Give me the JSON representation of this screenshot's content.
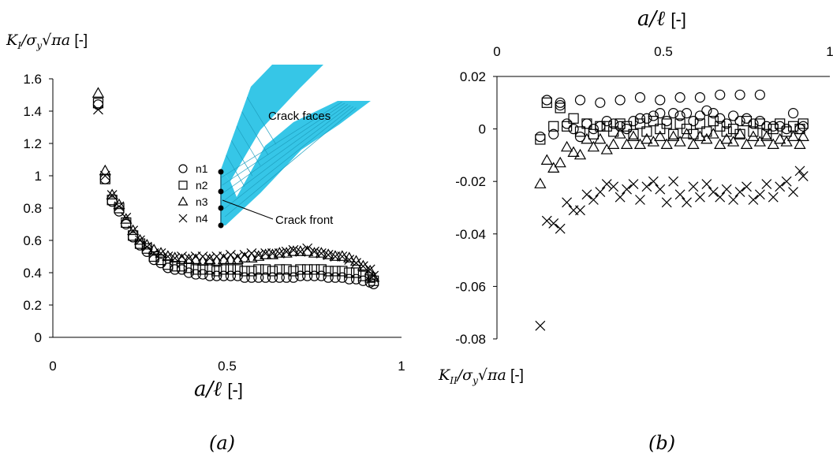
{
  "panels": {
    "a": {
      "ylabel_main": "K",
      "ylabel_sub": "I",
      "ylabel_rest": "/σ",
      "ylabel_sub2": "y",
      "ylabel_sqrt": "√πa",
      "ylabel_unit": "[-]",
      "xlabel_main": "a/ℓ",
      "xlabel_unit": "[-]",
      "caption": "(a)",
      "inset": {
        "faces_label": "Crack faces",
        "front_label": "Crack front",
        "face_color": "#2bc3e6",
        "legend": [
          {
            "marker": "circle",
            "label": "n1"
          },
          {
            "marker": "square",
            "label": "n2"
          },
          {
            "marker": "triangle",
            "label": "n3"
          },
          {
            "marker": "cross",
            "label": "n4"
          }
        ]
      }
    },
    "b": {
      "ylabel_main": "K",
      "ylabel_sub": "II",
      "ylabel_rest": "/σ",
      "ylabel_sub2": "y",
      "ylabel_sqrt": "√πa",
      "ylabel_unit": "[-]",
      "xlabel_main": "a/ℓ",
      "xlabel_unit": "[-]",
      "caption": "(b)"
    }
  },
  "chart_data": [
    {
      "type": "scatter",
      "xlim": [
        0,
        1
      ],
      "ylim": [
        0,
        1.6
      ],
      "xticks": [
        "0",
        "0.5",
        "1"
      ],
      "yticks": [
        "0",
        "0.2",
        "0.4",
        "0.6",
        "0.8",
        "1",
        "1.2",
        "1.4",
        "1.6"
      ],
      "grid": false,
      "legend": "inset",
      "series": [
        {
          "name": "n1",
          "marker": "circle",
          "x": [
            0.13,
            0.15,
            0.17,
            0.19,
            0.21,
            0.23,
            0.25,
            0.27,
            0.29,
            0.31,
            0.33,
            0.35,
            0.37,
            0.39,
            0.41,
            0.43,
            0.45,
            0.47,
            0.49,
            0.51,
            0.53,
            0.55,
            0.57,
            0.59,
            0.61,
            0.63,
            0.65,
            0.67,
            0.69,
            0.71,
            0.73,
            0.75,
            0.77,
            0.79,
            0.81,
            0.83,
            0.85,
            0.87,
            0.89,
            0.91,
            0.92
          ],
          "y": [
            1.44,
            0.98,
            0.84,
            0.78,
            0.7,
            0.62,
            0.57,
            0.53,
            0.48,
            0.46,
            0.43,
            0.42,
            0.42,
            0.4,
            0.39,
            0.39,
            0.38,
            0.38,
            0.38,
            0.38,
            0.38,
            0.37,
            0.37,
            0.37,
            0.37,
            0.37,
            0.37,
            0.37,
            0.37,
            0.38,
            0.38,
            0.38,
            0.38,
            0.37,
            0.37,
            0.37,
            0.36,
            0.36,
            0.35,
            0.34,
            0.33
          ]
        },
        {
          "name": "n2",
          "marker": "square",
          "x": [
            0.13,
            0.15,
            0.17,
            0.19,
            0.21,
            0.23,
            0.25,
            0.27,
            0.29,
            0.31,
            0.33,
            0.35,
            0.37,
            0.39,
            0.41,
            0.43,
            0.45,
            0.47,
            0.49,
            0.51,
            0.53,
            0.55,
            0.57,
            0.59,
            0.61,
            0.63,
            0.65,
            0.67,
            0.69,
            0.71,
            0.73,
            0.75,
            0.77,
            0.79,
            0.81,
            0.83,
            0.85,
            0.87,
            0.89,
            0.91,
            0.92
          ],
          "y": [
            1.45,
            0.98,
            0.85,
            0.8,
            0.71,
            0.63,
            0.58,
            0.55,
            0.5,
            0.48,
            0.45,
            0.44,
            0.44,
            0.43,
            0.42,
            0.42,
            0.42,
            0.41,
            0.42,
            0.42,
            0.42,
            0.41,
            0.41,
            0.42,
            0.42,
            0.41,
            0.42,
            0.42,
            0.41,
            0.42,
            0.42,
            0.42,
            0.42,
            0.41,
            0.41,
            0.41,
            0.4,
            0.4,
            0.38,
            0.37,
            0.35
          ]
        },
        {
          "name": "n3",
          "marker": "triangle",
          "x": [
            0.13,
            0.15,
            0.17,
            0.19,
            0.21,
            0.23,
            0.25,
            0.27,
            0.29,
            0.31,
            0.33,
            0.35,
            0.37,
            0.39,
            0.41,
            0.43,
            0.45,
            0.47,
            0.49,
            0.51,
            0.53,
            0.55,
            0.57,
            0.59,
            0.61,
            0.63,
            0.65,
            0.67,
            0.69,
            0.71,
            0.73,
            0.75,
            0.77,
            0.79,
            0.81,
            0.83,
            0.85,
            0.87,
            0.89,
            0.91,
            0.92
          ],
          "y": [
            1.51,
            1.03,
            0.88,
            0.82,
            0.73,
            0.66,
            0.6,
            0.57,
            0.54,
            0.52,
            0.5,
            0.49,
            0.48,
            0.48,
            0.48,
            0.47,
            0.48,
            0.47,
            0.48,
            0.48,
            0.48,
            0.49,
            0.49,
            0.5,
            0.51,
            0.51,
            0.52,
            0.52,
            0.53,
            0.53,
            0.53,
            0.52,
            0.52,
            0.51,
            0.5,
            0.5,
            0.49,
            0.47,
            0.44,
            0.41,
            0.37
          ]
        },
        {
          "name": "n4",
          "marker": "cross",
          "x": [
            0.13,
            0.15,
            0.17,
            0.19,
            0.21,
            0.23,
            0.25,
            0.27,
            0.29,
            0.31,
            0.33,
            0.35,
            0.37,
            0.39,
            0.41,
            0.43,
            0.45,
            0.47,
            0.49,
            0.51,
            0.53,
            0.55,
            0.57,
            0.59,
            0.61,
            0.63,
            0.65,
            0.67,
            0.69,
            0.71,
            0.73,
            0.75,
            0.77,
            0.79,
            0.81,
            0.83,
            0.85,
            0.87,
            0.89,
            0.91,
            0.92
          ],
          "y": [
            1.41,
            1.0,
            0.88,
            0.81,
            0.74,
            0.66,
            0.6,
            0.56,
            0.52,
            0.52,
            0.5,
            0.49,
            0.5,
            0.49,
            0.5,
            0.5,
            0.49,
            0.5,
            0.5,
            0.51,
            0.5,
            0.51,
            0.52,
            0.51,
            0.52,
            0.52,
            0.52,
            0.53,
            0.54,
            0.53,
            0.55,
            0.53,
            0.52,
            0.51,
            0.5,
            0.5,
            0.48,
            0.46,
            0.44,
            0.42,
            0.38
          ]
        }
      ]
    },
    {
      "type": "scatter",
      "xlim": [
        0,
        1
      ],
      "ylim": [
        -0.08,
        0.02
      ],
      "xticks": [
        "0",
        "0.5",
        "1"
      ],
      "yticks": [
        "-0.08",
        "-0.06",
        "-0.04",
        "-0.02",
        "0",
        "0.02"
      ],
      "grid": false,
      "legend": "none",
      "series": [
        {
          "name": "n1",
          "marker": "circle",
          "x": [
            0.13,
            0.15,
            0.17,
            0.19,
            0.21,
            0.23,
            0.25,
            0.27,
            0.29,
            0.31,
            0.33,
            0.35,
            0.37,
            0.39,
            0.41,
            0.43,
            0.45,
            0.47,
            0.49,
            0.51,
            0.53,
            0.55,
            0.57,
            0.59,
            0.61,
            0.63,
            0.65,
            0.67,
            0.69,
            0.71,
            0.73,
            0.75,
            0.77,
            0.79,
            0.81,
            0.83,
            0.85,
            0.87,
            0.89,
            0.91,
            0.92,
            0.19,
            0.25,
            0.31,
            0.37,
            0.43,
            0.49,
            0.55,
            0.61,
            0.67,
            0.73,
            0.79
          ],
          "y": [
            -0.003,
            0.011,
            -0.002,
            0.009,
            0.002,
            0.0,
            -0.003,
            0.002,
            0.0,
            0.001,
            0.003,
            0.002,
            0.001,
            0.0,
            0.003,
            0.004,
            0.004,
            0.005,
            0.006,
            0.003,
            0.006,
            0.005,
            0.006,
            0.003,
            0.005,
            0.007,
            0.006,
            0.004,
            0.002,
            0.005,
            0.003,
            0.004,
            0.002,
            0.003,
            0.001,
            0.001,
            0.001,
            0.0,
            0.006,
            0.0,
            0.001,
            0.01,
            0.011,
            0.01,
            0.011,
            0.012,
            0.011,
            0.012,
            0.012,
            0.013,
            0.013,
            0.013
          ]
        },
        {
          "name": "n2",
          "marker": "square",
          "x": [
            0.13,
            0.15,
            0.17,
            0.19,
            0.21,
            0.23,
            0.25,
            0.27,
            0.29,
            0.31,
            0.33,
            0.35,
            0.37,
            0.39,
            0.41,
            0.43,
            0.45,
            0.47,
            0.49,
            0.51,
            0.53,
            0.55,
            0.57,
            0.59,
            0.61,
            0.63,
            0.65,
            0.67,
            0.69,
            0.71,
            0.73,
            0.75,
            0.77,
            0.79,
            0.81,
            0.83,
            0.85,
            0.87,
            0.89,
            0.91,
            0.92
          ],
          "y": [
            -0.004,
            0.01,
            0.001,
            0.008,
            0.001,
            0.004,
            -0.001,
            0.002,
            -0.002,
            0.001,
            0.001,
            -0.001,
            0.002,
            0.001,
            -0.002,
            0.002,
            -0.001,
            0.003,
            0.0,
            0.002,
            -0.002,
            0.002,
            0.0,
            -0.002,
            0.002,
            -0.001,
            0.003,
            0.001,
            -0.001,
            0.0,
            -0.002,
            0.003,
            -0.001,
            0.002,
            -0.002,
            0.0,
            0.002,
            -0.001,
            0.001,
            0.0,
            0.002
          ]
        },
        {
          "name": "n3",
          "marker": "triangle",
          "x": [
            0.13,
            0.15,
            0.17,
            0.19,
            0.21,
            0.23,
            0.25,
            0.27,
            0.29,
            0.31,
            0.33,
            0.35,
            0.37,
            0.39,
            0.41,
            0.43,
            0.45,
            0.47,
            0.49,
            0.51,
            0.53,
            0.55,
            0.57,
            0.59,
            0.61,
            0.63,
            0.65,
            0.67,
            0.69,
            0.71,
            0.73,
            0.75,
            0.77,
            0.79,
            0.81,
            0.83,
            0.85,
            0.87,
            0.89,
            0.91,
            0.92
          ],
          "y": [
            -0.021,
            -0.012,
            -0.015,
            -0.013,
            -0.007,
            -0.009,
            -0.01,
            -0.004,
            -0.007,
            -0.004,
            -0.008,
            -0.006,
            -0.002,
            -0.006,
            -0.003,
            -0.006,
            -0.004,
            -0.005,
            -0.003,
            -0.006,
            -0.003,
            -0.005,
            -0.002,
            -0.006,
            -0.003,
            -0.004,
            -0.002,
            -0.006,
            -0.004,
            -0.005,
            -0.002,
            -0.006,
            -0.003,
            -0.005,
            -0.003,
            -0.006,
            -0.004,
            -0.005,
            -0.003,
            -0.006,
            -0.003
          ]
        },
        {
          "name": "n4",
          "marker": "cross",
          "x": [
            0.13,
            0.15,
            0.17,
            0.19,
            0.21,
            0.23,
            0.25,
            0.27,
            0.29,
            0.31,
            0.33,
            0.35,
            0.37,
            0.39,
            0.41,
            0.43,
            0.45,
            0.47,
            0.49,
            0.51,
            0.53,
            0.55,
            0.57,
            0.59,
            0.61,
            0.63,
            0.65,
            0.67,
            0.69,
            0.71,
            0.73,
            0.75,
            0.77,
            0.79,
            0.81,
            0.83,
            0.85,
            0.87,
            0.89,
            0.91,
            0.92
          ],
          "y": [
            -0.075,
            -0.035,
            -0.036,
            -0.038,
            -0.028,
            -0.031,
            -0.031,
            -0.025,
            -0.027,
            -0.024,
            -0.021,
            -0.022,
            -0.026,
            -0.023,
            -0.021,
            -0.027,
            -0.022,
            -0.02,
            -0.023,
            -0.028,
            -0.02,
            -0.025,
            -0.028,
            -0.022,
            -0.026,
            -0.021,
            -0.024,
            -0.026,
            -0.023,
            -0.027,
            -0.024,
            -0.022,
            -0.027,
            -0.025,
            -0.021,
            -0.026,
            -0.022,
            -0.02,
            -0.024,
            -0.016,
            -0.018
          ]
        }
      ]
    }
  ]
}
